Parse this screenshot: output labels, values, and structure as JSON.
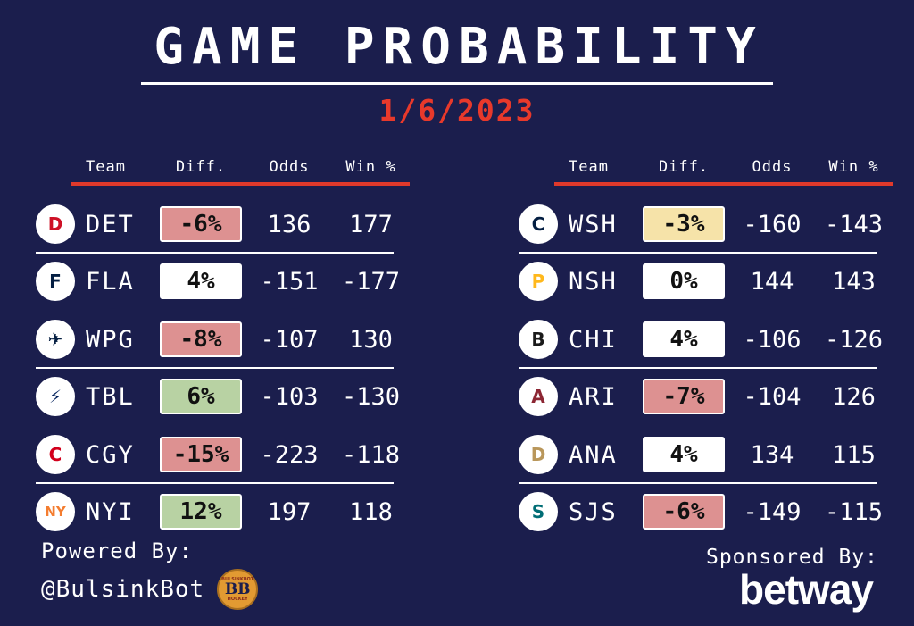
{
  "title": "GAME PROBABILITY",
  "date": "1/6/2023",
  "colors": {
    "background": "#1b1e4d",
    "accent_red": "#e0392b",
    "diff_negative_bg": "#dd9191",
    "diff_positive_bg": "#b8d2a3",
    "diff_slight_bg": "#f6e3a9",
    "diff_neutral_bg": "#ffffff"
  },
  "chart_data": [
    {
      "type": "table",
      "columns": [
        "Team",
        "Diff.",
        "Odds",
        "Win %"
      ],
      "rows": [
        {
          "team": "DET",
          "diff": "-6%",
          "odds": "136",
          "win": "177",
          "diff_bg": "#dd9191",
          "logo_glyph": "D",
          "logo_color": "#ce1126"
        },
        {
          "team": "FLA",
          "diff": "4%",
          "odds": "-151",
          "win": "-177",
          "diff_bg": "#ffffff",
          "logo_glyph": "F",
          "logo_color": "#041e42"
        },
        {
          "team": "WPG",
          "diff": "-8%",
          "odds": "-107",
          "win": "130",
          "diff_bg": "#dd9191",
          "logo_glyph": "✈",
          "logo_color": "#041e42"
        },
        {
          "team": "TBL",
          "diff": "6%",
          "odds": "-103",
          "win": "-130",
          "diff_bg": "#b8d2a3",
          "logo_glyph": "⚡",
          "logo_color": "#00205b"
        },
        {
          "team": "CGY",
          "diff": "-15%",
          "odds": "-223",
          "win": "-118",
          "diff_bg": "#dd9191",
          "logo_glyph": "C",
          "logo_color": "#d2001c"
        },
        {
          "team": "NYI",
          "diff": "12%",
          "odds": "197",
          "win": "118",
          "diff_bg": "#b8d2a3",
          "logo_glyph": "NY",
          "logo_color": "#f47d30"
        }
      ]
    },
    {
      "type": "table",
      "columns": [
        "Team",
        "Diff.",
        "Odds",
        "Win %"
      ],
      "rows": [
        {
          "team": "WSH",
          "diff": "-3%",
          "odds": "-160",
          "win": "-143",
          "diff_bg": "#f6e3a9",
          "logo_glyph": "C",
          "logo_color": "#041e42"
        },
        {
          "team": "NSH",
          "diff": "0%",
          "odds": "144",
          "win": "143",
          "diff_bg": "#ffffff",
          "logo_glyph": "P",
          "logo_color": "#ffb81c"
        },
        {
          "team": "CHI",
          "diff": "4%",
          "odds": "-106",
          "win": "-126",
          "diff_bg": "#ffffff",
          "logo_glyph": "B",
          "logo_color": "#1a1a1a"
        },
        {
          "team": "ARI",
          "diff": "-7%",
          "odds": "-104",
          "win": "126",
          "diff_bg": "#dd9191",
          "logo_glyph": "A",
          "logo_color": "#8c2633"
        },
        {
          "team": "ANA",
          "diff": "4%",
          "odds": "134",
          "win": "115",
          "diff_bg": "#ffffff",
          "logo_glyph": "D",
          "logo_color": "#b9975b"
        },
        {
          "team": "SJS",
          "diff": "-6%",
          "odds": "-149",
          "win": "-115",
          "diff_bg": "#dd9191",
          "logo_glyph": "S",
          "logo_color": "#006d75"
        }
      ]
    }
  ],
  "footer": {
    "powered_label": "Powered By:",
    "handle": "@BulsinkBot",
    "coin": {
      "top": "BULSINKBOT",
      "middle": "BB",
      "bottom": "HOCKEY"
    },
    "sponsored_label": "Sponsored By:",
    "sponsor": "betway"
  }
}
